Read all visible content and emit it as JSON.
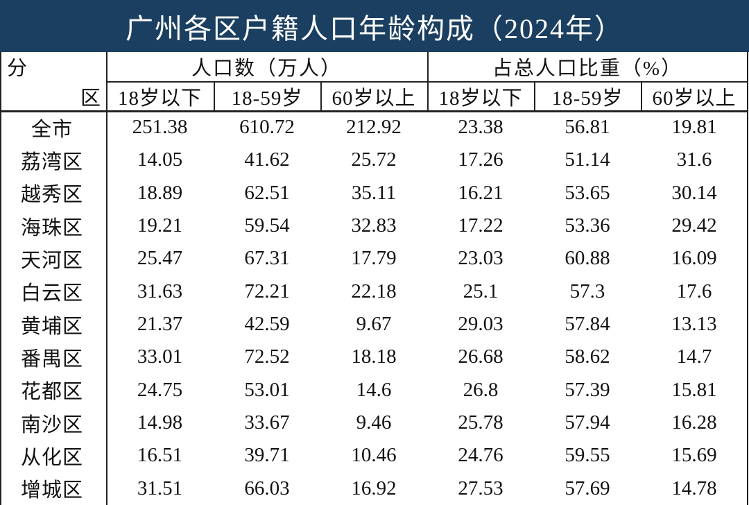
{
  "title": "广州各区户籍人口年龄构成（2024年）",
  "header": {
    "corner_top": "分",
    "corner_bottom": "区",
    "groups": [
      {
        "label": "人口数（万人）",
        "columns": [
          "18岁以下",
          "18-59岁",
          "60岁以上"
        ]
      },
      {
        "label": "占总人口比重（%）",
        "columns": [
          "18岁以下",
          "18-59岁",
          "60岁以上"
        ]
      }
    ]
  },
  "table": {
    "rows": [
      [
        "全市",
        251.38,
        610.72,
        212.92,
        23.38,
        56.81,
        19.81
      ],
      [
        "荔湾区",
        14.05,
        41.62,
        25.72,
        17.26,
        51.14,
        31.6
      ],
      [
        "越秀区",
        18.89,
        62.51,
        35.11,
        16.21,
        53.65,
        30.14
      ],
      [
        "海珠区",
        19.21,
        59.54,
        32.83,
        17.22,
        53.36,
        29.42
      ],
      [
        "天河区",
        25.47,
        67.31,
        17.79,
        23.03,
        60.88,
        16.09
      ],
      [
        "白云区",
        31.63,
        72.21,
        22.18,
        25.1,
        57.3,
        17.6
      ],
      [
        "黄埔区",
        21.37,
        42.59,
        9.67,
        29.03,
        57.84,
        13.13
      ],
      [
        "番禺区",
        33.01,
        72.52,
        18.18,
        26.68,
        58.62,
        14.7
      ],
      [
        "花都区",
        24.75,
        53.01,
        14.6,
        26.8,
        57.39,
        15.81
      ],
      [
        "南沙区",
        14.98,
        33.67,
        9.46,
        25.78,
        57.94,
        16.28
      ],
      [
        "从化区",
        16.51,
        39.71,
        10.46,
        24.76,
        59.55,
        15.69
      ],
      [
        "增城区",
        31.51,
        66.03,
        16.92,
        27.53,
        57.69,
        14.78
      ]
    ]
  }
}
